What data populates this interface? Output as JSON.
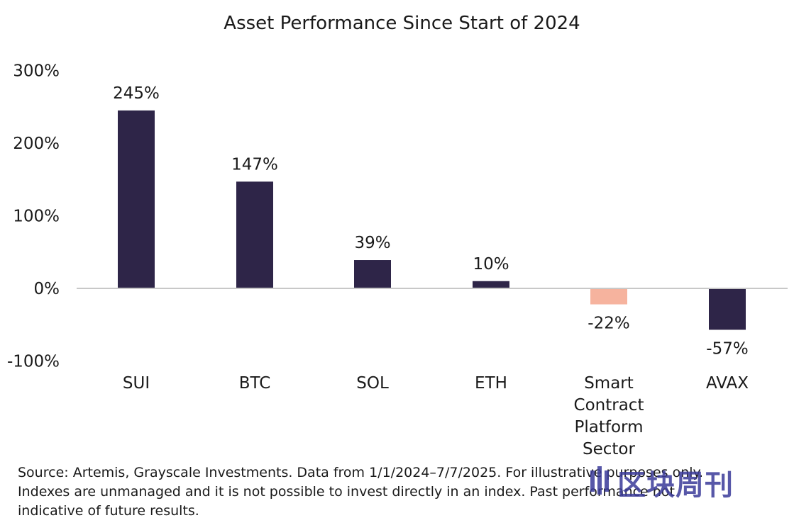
{
  "chart_data": {
    "type": "bar",
    "title": "Asset Performance Since Start of 2024",
    "categories": [
      [
        "SUI"
      ],
      [
        "BTC"
      ],
      [
        "SOL"
      ],
      [
        "ETH"
      ],
      [
        "Smart",
        "Contract",
        "Platform",
        "Sector"
      ],
      [
        "AVAX"
      ]
    ],
    "values": [
      245,
      147,
      39,
      10,
      -22,
      -57
    ],
    "data_labels": [
      "245%",
      "147%",
      "39%",
      "10%",
      "-22%",
      "-57%"
    ],
    "ylim": [
      -100,
      300
    ],
    "yticks": [
      300,
      200,
      100,
      0,
      -100
    ],
    "ytick_labels": [
      "300%",
      "200%",
      "100%",
      "0%",
      "-100%"
    ],
    "grid": false,
    "bar_colors": [
      "#2e2548",
      "#2e2548",
      "#2e2548",
      "#2e2548",
      "#f6b39e",
      "#2e2548"
    ],
    "axis_color": "#c8c8c8"
  },
  "footnote": [
    "Source: Artemis, Grayscale Investments. Data from 1/1/2024–7/7/2025. For illustrative purposes only.",
    "Indexes are unmanaged and it is not possible to invest directly in an index. Past performance not",
    "indicative of future results."
  ],
  "watermark": {
    "text": "区块周刊",
    "color": "#3a3a9a"
  }
}
